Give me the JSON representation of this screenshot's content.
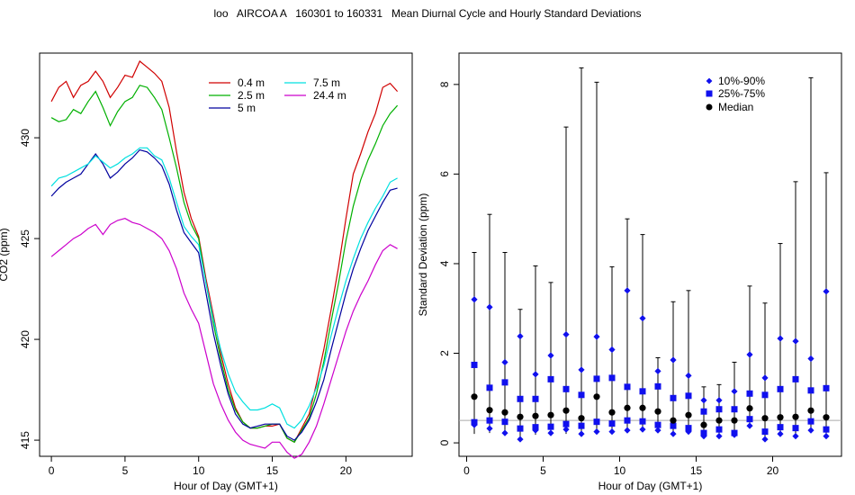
{
  "title": "loo   AIRCOA A   160301 to 160331   Mean Diurnal Cycle and Hourly Standard Deviations",
  "chart_data": [
    {
      "type": "line",
      "xlabel": "Hour of Day (GMT+1)",
      "ylabel": "CO2 (ppm)",
      "xlim": [
        -0.8,
        24.5
      ],
      "ylim": [
        414.2,
        434.2
      ],
      "xticks": [
        0,
        5,
        10,
        15,
        20
      ],
      "yticks": [
        415,
        420,
        425,
        430
      ],
      "legend_position": "top-right",
      "x": [
        0.0,
        0.5,
        1.0,
        1.5,
        2.0,
        2.5,
        3.0,
        3.5,
        4.0,
        4.5,
        5.0,
        5.5,
        6.0,
        6.5,
        7.0,
        7.5,
        8.0,
        8.5,
        9.0,
        9.5,
        10.0,
        10.5,
        11.0,
        11.5,
        12.0,
        12.5,
        13.0,
        13.5,
        14.0,
        14.5,
        15.0,
        15.5,
        16.0,
        16.5,
        17.0,
        17.5,
        18.0,
        18.5,
        19.0,
        19.5,
        20.0,
        20.5,
        21.0,
        21.5,
        22.0,
        22.5,
        23.0,
        23.5
      ],
      "series": [
        {
          "name": "0.4 m",
          "color": "#d00000",
          "values": [
            431.8,
            432.5,
            432.8,
            432.0,
            432.6,
            432.8,
            433.3,
            432.8,
            432.0,
            432.5,
            433.1,
            433.0,
            433.8,
            433.5,
            433.2,
            432.8,
            431.5,
            429.3,
            427.3,
            426.0,
            425.1,
            423.0,
            421.2,
            419.3,
            417.8,
            416.6,
            415.9,
            415.6,
            415.6,
            415.7,
            415.7,
            415.8,
            415.1,
            414.9,
            415.6,
            416.3,
            417.8,
            419.5,
            421.5,
            423.6,
            426.0,
            428.2,
            429.2,
            430.3,
            431.2,
            432.5,
            432.7,
            432.3
          ]
        },
        {
          "name": "2.5 m",
          "color": "#00b000",
          "values": [
            431.0,
            430.8,
            430.9,
            431.4,
            431.2,
            431.8,
            432.3,
            431.5,
            430.6,
            431.3,
            431.8,
            432.0,
            432.6,
            432.5,
            432.0,
            431.4,
            430.0,
            428.5,
            426.8,
            425.7,
            425.0,
            422.8,
            420.8,
            419.0,
            417.5,
            416.5,
            415.9,
            415.6,
            415.6,
            415.7,
            415.8,
            415.8,
            415.1,
            414.9,
            415.5,
            416.1,
            417.3,
            418.9,
            420.9,
            422.8,
            424.9,
            426.6,
            427.9,
            428.9,
            429.7,
            430.6,
            431.2,
            431.6
          ]
        },
        {
          "name": "5 m",
          "color": "#00009e",
          "values": [
            427.1,
            427.5,
            427.8,
            428.0,
            428.2,
            428.7,
            429.2,
            428.7,
            428.0,
            428.3,
            428.7,
            429.0,
            429.4,
            429.3,
            429.0,
            428.6,
            427.7,
            426.4,
            425.3,
            424.8,
            424.3,
            422.3,
            420.3,
            418.7,
            417.3,
            416.3,
            415.8,
            415.6,
            415.7,
            415.8,
            415.8,
            415.8,
            415.2,
            415.0,
            415.4,
            416.0,
            416.9,
            418.0,
            419.5,
            420.9,
            422.3,
            423.5,
            424.5,
            425.4,
            426.1,
            426.8,
            427.4,
            427.5
          ]
        },
        {
          "name": "7.5 m",
          "color": "#00e0e0",
          "values": [
            427.6,
            428.0,
            428.1,
            428.3,
            428.5,
            428.7,
            429.1,
            428.8,
            428.5,
            428.7,
            429.0,
            429.2,
            429.5,
            429.5,
            429.1,
            428.9,
            428.0,
            426.8,
            425.6,
            425.1,
            424.7,
            422.8,
            421.0,
            419.5,
            418.3,
            417.4,
            416.9,
            416.5,
            416.5,
            416.6,
            416.8,
            416.6,
            415.8,
            415.6,
            416.0,
            416.7,
            417.6,
            418.7,
            420.2,
            421.6,
            422.9,
            424.0,
            425.0,
            425.8,
            426.5,
            427.1,
            427.8,
            428.0
          ]
        },
        {
          "name": "24.4 m",
          "color": "#cc00cc",
          "values": [
            424.1,
            424.4,
            424.7,
            425.0,
            425.2,
            425.5,
            425.7,
            425.2,
            425.7,
            425.9,
            426.0,
            425.8,
            425.7,
            425.5,
            425.3,
            425.0,
            424.4,
            423.5,
            422.3,
            421.5,
            420.8,
            419.3,
            417.8,
            416.8,
            416.0,
            415.4,
            415.0,
            414.8,
            414.7,
            414.6,
            414.9,
            414.9,
            414.4,
            414.1,
            414.3,
            414.9,
            415.7,
            416.8,
            418.0,
            419.2,
            420.4,
            421.4,
            422.2,
            422.9,
            423.7,
            424.4,
            424.7,
            424.5
          ]
        }
      ]
    },
    {
      "type": "scatter",
      "xlabel": "Hour of Day (GMT+1)",
      "ylabel": "Standard Deviation (ppm)",
      "xlim": [
        -0.5,
        24.5
      ],
      "ylim": [
        -0.3,
        8.7
      ],
      "xticks": [
        0,
        5,
        10,
        15,
        20
      ],
      "yticks": [
        0,
        2,
        4,
        6,
        8
      ],
      "reference_line": 0.5,
      "legend_position": "top-right",
      "legend": [
        "10%-90%",
        "25%-75%",
        "Median"
      ],
      "x": [
        0.5,
        1.5,
        2.5,
        3.5,
        4.5,
        5.5,
        6.5,
        7.5,
        8.5,
        9.5,
        10.5,
        11.5,
        12.5,
        13.5,
        14.5,
        15.5,
        16.5,
        17.5,
        18.5,
        19.5,
        20.5,
        21.5,
        22.5,
        23.5
      ],
      "whisker_top": [
        4.25,
        5.1,
        4.25,
        2.98,
        3.95,
        3.58,
        7.05,
        8.37,
        8.05,
        3.93,
        5.0,
        4.65,
        1.9,
        3.15,
        3.4,
        1.25,
        1.3,
        1.8,
        3.5,
        3.12,
        4.45,
        5.83,
        8.15,
        6.03
      ],
      "whisker_bottom": [
        0.2,
        0.22,
        0.28,
        0.1,
        0.18,
        0.2,
        0.2,
        0.15,
        0.22,
        0.2,
        0.25,
        0.25,
        0.25,
        0.22,
        0.2,
        0.2,
        0.15,
        0.22,
        0.35,
        0.1,
        0.15,
        0.2,
        0.3,
        0.2
      ],
      "p90": [
        3.2,
        3.03,
        1.8,
        2.38,
        1.53,
        1.95,
        2.42,
        1.63,
        2.37,
        2.08,
        3.4,
        2.78,
        1.6,
        1.85,
        1.5,
        0.95,
        0.95,
        1.15,
        1.97,
        1.45,
        2.33,
        2.27,
        1.88,
        3.38
      ],
      "p75": [
        1.74,
        1.23,
        1.35,
        0.98,
        0.98,
        1.42,
        1.2,
        1.07,
        1.43,
        1.45,
        1.25,
        1.15,
        1.26,
        1.0,
        1.05,
        0.7,
        0.75,
        0.75,
        1.1,
        1.07,
        1.2,
        1.42,
        1.17,
        1.22
      ],
      "median": [
        1.03,
        0.73,
        0.68,
        0.58,
        0.6,
        0.62,
        0.72,
        0.55,
        1.03,
        0.68,
        0.78,
        0.78,
        0.7,
        0.5,
        0.62,
        0.4,
        0.5,
        0.5,
        0.77,
        0.55,
        0.57,
        0.58,
        0.72,
        0.57
      ],
      "p25": [
        0.46,
        0.5,
        0.47,
        0.32,
        0.35,
        0.36,
        0.42,
        0.38,
        0.47,
        0.43,
        0.5,
        0.48,
        0.4,
        0.38,
        0.33,
        0.22,
        0.3,
        0.22,
        0.53,
        0.25,
        0.35,
        0.33,
        0.48,
        0.3
      ],
      "p10": [
        0.4,
        0.32,
        0.22,
        0.08,
        0.28,
        0.22,
        0.3,
        0.2,
        0.25,
        0.25,
        0.28,
        0.3,
        0.28,
        0.2,
        0.25,
        0.15,
        0.15,
        0.18,
        0.38,
        0.08,
        0.2,
        0.15,
        0.28,
        0.15
      ]
    }
  ]
}
